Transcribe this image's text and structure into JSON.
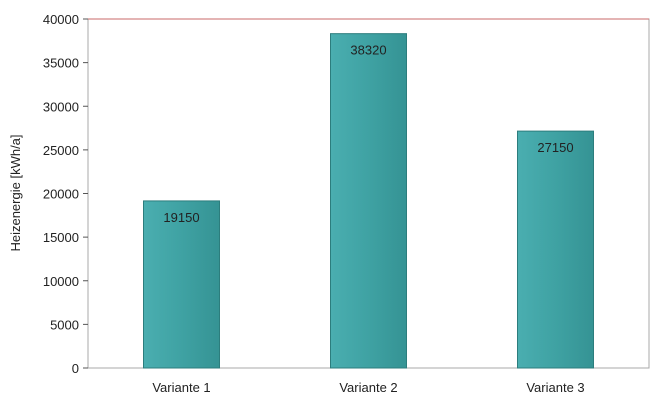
{
  "chart_data": {
    "type": "bar",
    "title": "",
    "xlabel": "",
    "ylabel": "Heizenergie [kWh/a]",
    "categories": [
      "Variante 1",
      "Variante 2",
      "Variante 3"
    ],
    "values": [
      19150,
      38320,
      27150
    ],
    "data_labels": [
      "19150",
      "38320",
      "27150"
    ],
    "ylim": [
      0,
      40000
    ],
    "yticks": [
      0,
      5000,
      10000,
      15000,
      20000,
      25000,
      30000,
      35000,
      40000
    ],
    "ytick_labels": [
      "0",
      "5000",
      "10000",
      "15000",
      "20000",
      "25000",
      "30000",
      "35000",
      "40000"
    ],
    "grid": false,
    "legend": "none",
    "colors": {
      "bar_fill": "#3fa6a6",
      "bar_edge": "#2c7d7d",
      "frame": "#a8a8a8",
      "top_border": "#c86a6a"
    }
  }
}
